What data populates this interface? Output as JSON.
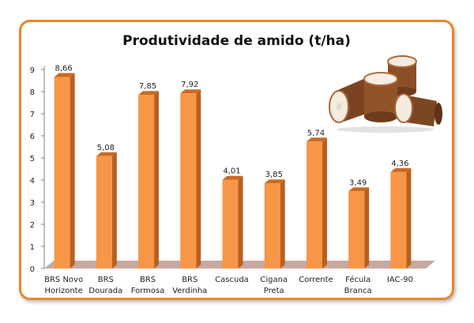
{
  "chart_data": {
    "type": "bar",
    "title": "Produtividade de amido (t/ha)",
    "categories": [
      [
        "BRS Novo",
        "Horizonte"
      ],
      [
        "BRS",
        "Dourada"
      ],
      [
        "BRS",
        "Formosa"
      ],
      [
        "BRS",
        "Verdinha"
      ],
      [
        "Cascuda"
      ],
      [
        "Cigana",
        "Preta"
      ],
      [
        "Corrente"
      ],
      [
        "Fécula",
        "Branca"
      ],
      [
        "IAC-90"
      ]
    ],
    "values": [
      8.66,
      5.08,
      7.85,
      7.92,
      4.01,
      3.85,
      5.74,
      3.49,
      4.36
    ],
    "value_labels": [
      "8,66",
      "5,08",
      "7,85",
      "7,92",
      "4,01",
      "3,85",
      "5,74",
      "3,49",
      "4,36"
    ],
    "yticks": [
      "0",
      "1",
      "2",
      "3",
      "4",
      "5",
      "6",
      "7",
      "8",
      "9"
    ],
    "ylim": [
      0,
      9
    ],
    "grid": false,
    "legend": "none",
    "colors": {
      "bar_front": "#f79646",
      "bar_side": "#b8601f",
      "bar_top": "#c96a22",
      "floor": "#c8a9a1",
      "frame": "#e8872c"
    }
  }
}
